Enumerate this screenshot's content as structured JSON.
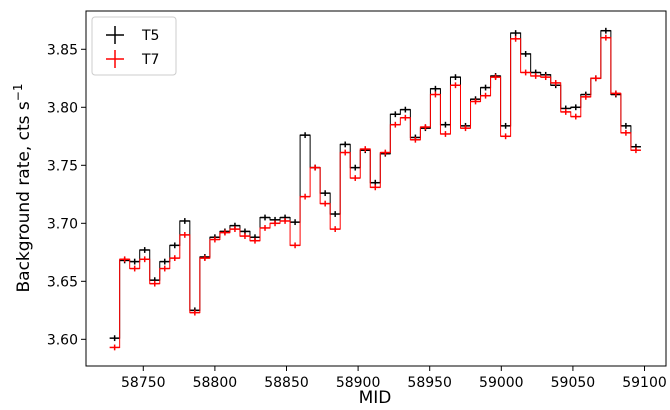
{
  "chart_data": {
    "type": "line",
    "drawstyle": "steps-mid",
    "xlabel": "MID",
    "ylabel": "Background rate, cts s",
    "ylabel_superscript": "−1",
    "xlim": [
      58710,
      59115
    ],
    "ylim": [
      3.577,
      3.883
    ],
    "xticks": [
      58750,
      58800,
      58850,
      58900,
      58950,
      59000,
      59050,
      59100
    ],
    "yticks": [
      3.6,
      3.65,
      3.7,
      3.75,
      3.8,
      3.85
    ],
    "xtick_labels": [
      "58750",
      "58800",
      "58850",
      "58900",
      "58950",
      "59000",
      "59050",
      "59100"
    ],
    "ytick_labels": [
      "3.60",
      "3.65",
      "3.70",
      "3.75",
      "3.80",
      "3.85"
    ],
    "grid": false,
    "legend_position": "top-left",
    "x": [
      58730,
      58737,
      58744,
      58751,
      58758,
      58765,
      58772,
      58779,
      58786,
      58793,
      58800,
      58807,
      58814,
      58821,
      58828,
      58835,
      58842,
      58849,
      58856,
      58863,
      58870,
      58877,
      58884,
      58891,
      58898,
      58905,
      58912,
      58919,
      58926,
      58933,
      58940,
      58947,
      58954,
      58961,
      58968,
      58975,
      58982,
      58989,
      58996,
      59003,
      59010,
      59017,
      59024,
      59031,
      59038,
      59045,
      59052,
      59059,
      59066,
      59073,
      59080,
      59087,
      59094
    ],
    "series": [
      {
        "name": "T5",
        "color": "#000000",
        "values": [
          3.601,
          3.668,
          3.667,
          3.677,
          3.651,
          3.667,
          3.681,
          3.702,
          3.625,
          3.671,
          3.688,
          3.693,
          3.698,
          3.693,
          3.688,
          3.705,
          3.703,
          3.705,
          3.701,
          3.776,
          3.748,
          3.726,
          3.708,
          3.768,
          3.748,
          3.763,
          3.735,
          3.76,
          3.794,
          3.798,
          3.774,
          3.782,
          3.816,
          3.785,
          3.826,
          3.784,
          3.807,
          3.817,
          3.827,
          3.784,
          3.864,
          3.846,
          3.83,
          3.828,
          3.819,
          3.799,
          3.8,
          3.811,
          3.825,
          3.866,
          3.811,
          3.784,
          3.766
        ]
      },
      {
        "name": "T7",
        "color": "#ff0000",
        "values": [
          3.593,
          3.669,
          3.661,
          3.669,
          3.648,
          3.661,
          3.67,
          3.69,
          3.623,
          3.67,
          3.686,
          3.692,
          3.695,
          3.689,
          3.685,
          3.696,
          3.7,
          3.702,
          3.681,
          3.723,
          3.748,
          3.717,
          3.695,
          3.761,
          3.739,
          3.764,
          3.731,
          3.761,
          3.785,
          3.791,
          3.772,
          3.783,
          3.811,
          3.777,
          3.819,
          3.782,
          3.805,
          3.81,
          3.826,
          3.775,
          3.859,
          3.83,
          3.827,
          3.826,
          3.821,
          3.796,
          3.792,
          3.809,
          3.825,
          3.86,
          3.812,
          3.778,
          3.763
        ]
      }
    ]
  }
}
